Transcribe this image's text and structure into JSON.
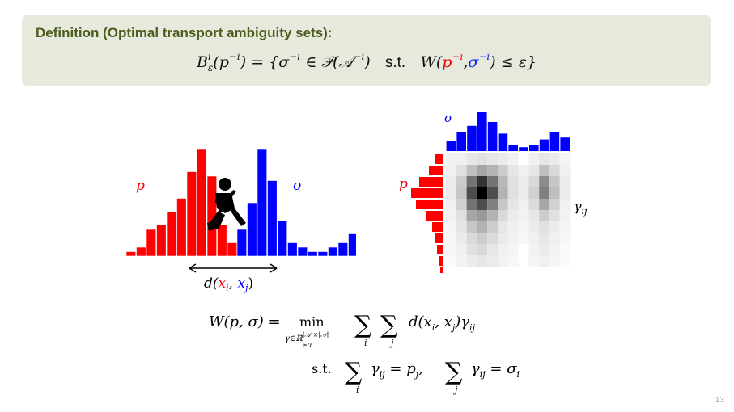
{
  "definition": {
    "title": "Definition (Optimal transport ambiguity sets):",
    "formula": {
      "B": "B",
      "sup_i": "i",
      "sub_eps": "ε",
      "p_arg": "(p",
      "minus_i": "−i",
      "equals": ") = {σ",
      "in_P": " ∈ 𝒫(𝒜",
      "close": ")",
      "st": "s.t.",
      "W": "W(",
      "p": "p",
      "comma": ",",
      "sigma": "σ",
      "le": ") ≤ ε}"
    }
  },
  "left_figure": {
    "p_label": "p",
    "sigma_label": "σ",
    "distance_label_prefix": "d(",
    "distance_xi": "x",
    "distance_xi_sub": "i",
    "distance_sep": ", ",
    "distance_xj": "x",
    "distance_xj_sub": "j",
    "distance_label_suffix": ")",
    "p_values": [
      1,
      2,
      6,
      7,
      10,
      13,
      19,
      24,
      18,
      7,
      3
    ],
    "sigma_values": [
      6,
      12,
      24,
      17,
      8,
      3,
      2,
      1,
      1,
      2,
      3,
      5,
      8,
      6
    ],
    "colors": {
      "p": "#ff0000",
      "sigma": "#0000ff",
      "icon": "shovel-worker"
    }
  },
  "right_figure": {
    "sigma_label": "σ",
    "p_label": "p",
    "gamma_label": "γ",
    "gamma_sub": "ij",
    "sigma_top_values": [
      0.25,
      0.5,
      0.65,
      1.0,
      0.75,
      0.45,
      0.15,
      0.1,
      0.15,
      0.3,
      0.5,
      0.35
    ],
    "p_left_values": [
      0.25,
      0.45,
      0.75,
      1.0,
      0.85,
      0.55,
      0.35,
      0.25,
      0.2,
      0.15,
      0.1,
      0.05
    ],
    "heatmap": [
      [
        0.05,
        0.06,
        0.1,
        0.12,
        0.1,
        0.08,
        0.05,
        0.0,
        0.06,
        0.1,
        0.08,
        0.04
      ],
      [
        0.06,
        0.12,
        0.25,
        0.35,
        0.3,
        0.2,
        0.1,
        0.06,
        0.1,
        0.25,
        0.15,
        0.06
      ],
      [
        0.08,
        0.2,
        0.55,
        0.8,
        0.55,
        0.28,
        0.12,
        0.08,
        0.15,
        0.45,
        0.22,
        0.08
      ],
      [
        0.08,
        0.22,
        0.7,
        1.0,
        0.7,
        0.3,
        0.12,
        0.08,
        0.18,
        0.5,
        0.25,
        0.08
      ],
      [
        0.06,
        0.18,
        0.55,
        0.7,
        0.5,
        0.22,
        0.1,
        0.06,
        0.14,
        0.35,
        0.18,
        0.06
      ],
      [
        0.05,
        0.12,
        0.35,
        0.4,
        0.3,
        0.15,
        0.08,
        0.05,
        0.1,
        0.2,
        0.12,
        0.05
      ],
      [
        0.04,
        0.1,
        0.22,
        0.3,
        0.2,
        0.1,
        0.06,
        0.04,
        0.08,
        0.12,
        0.08,
        0.04
      ],
      [
        0.03,
        0.08,
        0.15,
        0.2,
        0.14,
        0.08,
        0.05,
        0.03,
        0.06,
        0.1,
        0.06,
        0.03
      ],
      [
        0.03,
        0.06,
        0.12,
        0.15,
        0.1,
        0.06,
        0.04,
        0.0,
        0.05,
        0.08,
        0.05,
        0.02
      ],
      [
        0.02,
        0.05,
        0.08,
        0.1,
        0.08,
        0.05,
        0.03,
        0.0,
        0.04,
        0.06,
        0.04,
        0.02
      ]
    ],
    "colors": {
      "p": "#ff0000",
      "sigma": "#0000ff",
      "heat_max": "#000000",
      "heat_min": "#ffffff"
    }
  },
  "equations": {
    "W_lhs": "W(p, σ) =",
    "min": "min",
    "min_sub": "γ∈ℝ",
    "min_sup": "|𝒜|×|𝒜|",
    "min_sub2": "≥0",
    "sum": "∑",
    "sum_i": "i",
    "sum_j": "j",
    "objective": "d(x",
    "obj_sub_i": "i",
    "obj_mid": ", x",
    "obj_sub_j": "j",
    "obj_end": ")γ",
    "obj_gamma_sub": "ij",
    "st": "s.t.",
    "c1_gamma": "γ",
    "c1_sub": "ij",
    "c1_eq": " = p",
    "c1_p_sub": "j",
    "c1_comma": ",",
    "c2_gamma": "γ",
    "c2_sub": "ij",
    "c2_eq": " = σ",
    "c2_s_sub": "i"
  },
  "slide_number": "13"
}
